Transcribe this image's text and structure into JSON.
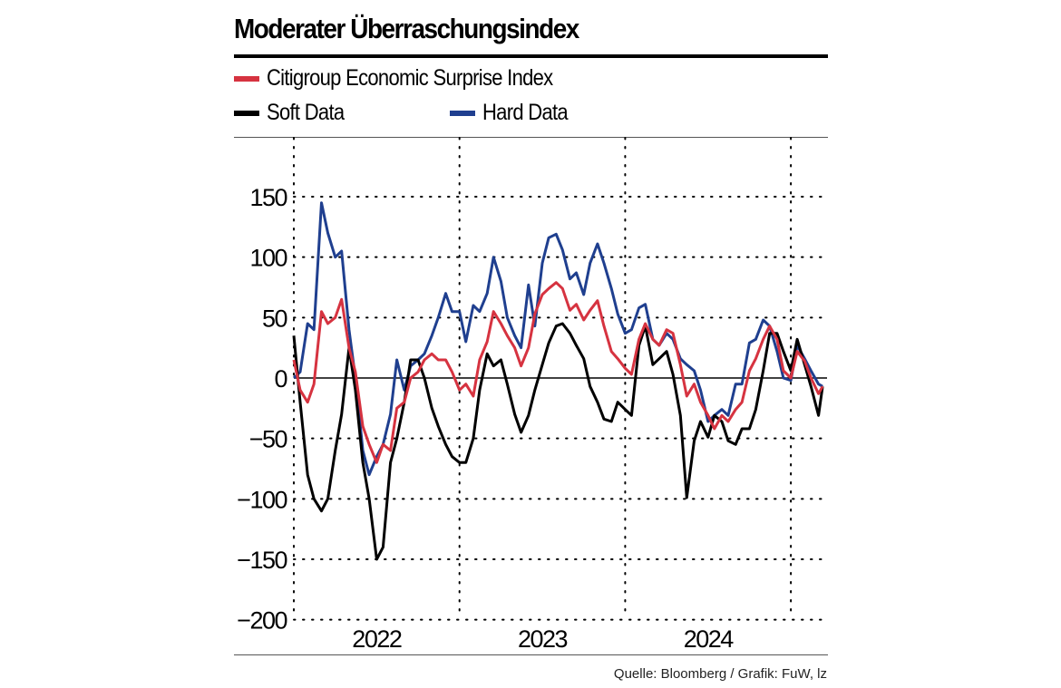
{
  "title": "Moderater Überraschungsindex",
  "source": "Quelle: Bloomberg / Grafik: FuW, lz",
  "chart_data": {
    "type": "line",
    "title": "Moderater Überraschungsindex",
    "xlabel": "",
    "ylabel": "",
    "ylim": [
      -200,
      200
    ],
    "yticks": [
      150,
      100,
      50,
      0,
      -50,
      -100,
      -150,
      -200
    ],
    "ytick_labels": [
      "150",
      "100",
      "50",
      "0",
      "−50",
      "−100",
      "−150",
      "−200"
    ],
    "xlim": [
      "2022-01-01",
      "2025-03-15"
    ],
    "xtick_labels": [
      "2022",
      "2023",
      "2024"
    ],
    "grid": "dotted",
    "legend": "top",
    "x": [
      "2022-01-01",
      "2022-01-15",
      "2022-02-01",
      "2022-02-15",
      "2022-03-01",
      "2022-03-15",
      "2022-04-01",
      "2022-04-15",
      "2022-05-01",
      "2022-05-15",
      "2022-06-01",
      "2022-06-15",
      "2022-07-01",
      "2022-07-15",
      "2022-08-01",
      "2022-08-15",
      "2022-09-01",
      "2022-09-15",
      "2022-10-01",
      "2022-10-15",
      "2022-11-01",
      "2022-11-15",
      "2022-12-01",
      "2022-12-15",
      "2023-01-01",
      "2023-01-15",
      "2023-02-01",
      "2023-02-15",
      "2023-03-01",
      "2023-03-15",
      "2023-04-01",
      "2023-04-15",
      "2023-05-01",
      "2023-05-15",
      "2023-06-01",
      "2023-06-15",
      "2023-07-01",
      "2023-07-15",
      "2023-08-01",
      "2023-08-15",
      "2023-09-01",
      "2023-09-15",
      "2023-10-01",
      "2023-10-15",
      "2023-11-01",
      "2023-11-15",
      "2023-12-01",
      "2023-12-15",
      "2024-01-01",
      "2024-01-15",
      "2024-02-01",
      "2024-02-15",
      "2024-03-01",
      "2024-03-15",
      "2024-04-01",
      "2024-04-15",
      "2024-05-01",
      "2024-05-15",
      "2024-06-01",
      "2024-06-15",
      "2024-07-01",
      "2024-07-15",
      "2024-08-01",
      "2024-08-15",
      "2024-09-01",
      "2024-09-15",
      "2024-10-01",
      "2024-10-15",
      "2024-11-01",
      "2024-11-15",
      "2024-12-01",
      "2024-12-15",
      "2025-01-01",
      "2025-01-15",
      "2025-02-01",
      "2025-02-15",
      "2025-03-01",
      "2025-03-10"
    ],
    "series": [
      {
        "name": "Hard Data",
        "color": "#1f3f8f",
        "values": [
          0,
          5,
          45,
          40,
          145,
          120,
          100,
          105,
          40,
          0,
          -60,
          -80,
          -65,
          -55,
          -30,
          15,
          -10,
          10,
          15,
          20,
          35,
          50,
          70,
          55,
          55,
          30,
          60,
          55,
          70,
          100,
          80,
          50,
          35,
          25,
          77,
          43,
          95,
          116,
          119,
          106,
          82,
          87,
          69,
          95,
          111,
          95,
          74,
          53,
          37,
          40,
          58,
          61,
          32,
          27,
          37,
          32,
          16,
          11,
          6,
          -10,
          -36,
          -31,
          -26,
          -31,
          -5,
          -5,
          29,
          32,
          48,
          43,
          22,
          0,
          -2,
          27,
          16,
          6,
          -5,
          -7
        ]
      },
      {
        "name": "Soft Data",
        "color": "#000000",
        "values": [
          35,
          -20,
          -80,
          -100,
          -110,
          -100,
          -60,
          -30,
          25,
          -10,
          -70,
          -100,
          -150,
          -140,
          -70,
          -50,
          -20,
          15,
          15,
          0,
          -25,
          -40,
          -55,
          -65,
          -70,
          -70,
          -50,
          -10,
          20,
          10,
          15,
          -5,
          -30,
          -45,
          -31,
          -10,
          11,
          29,
          43,
          45,
          37,
          27,
          16,
          -7,
          -20,
          -34,
          -36,
          -20,
          -26,
          -31,
          27,
          43,
          11,
          16,
          22,
          3,
          -31,
          -99,
          -52,
          -36,
          -49,
          -31,
          -36,
          -52,
          -55,
          -42,
          -42,
          -26,
          6,
          37,
          37,
          22,
          6,
          32,
          11,
          -7,
          -31,
          -7
        ]
      },
      {
        "name": "Citigroup Economic Surprise Index",
        "color": "#d63340",
        "values": [
          15,
          -10,
          -20,
          -5,
          55,
          45,
          50,
          65,
          25,
          5,
          -40,
          -55,
          -70,
          -55,
          -60,
          -25,
          -20,
          0,
          5,
          15,
          20,
          15,
          15,
          5,
          -10,
          -5,
          -15,
          15,
          30,
          55,
          45,
          35,
          25,
          10,
          25,
          53,
          69,
          74,
          79,
          74,
          56,
          61,
          48,
          56,
          64,
          43,
          22,
          16,
          8,
          3,
          32,
          45,
          32,
          27,
          40,
          37,
          11,
          -15,
          -5,
          -20,
          -31,
          -42,
          -31,
          -36,
          -26,
          -20,
          6,
          16,
          32,
          43,
          32,
          6,
          0,
          22,
          14,
          0,
          -13,
          -7
        ]
      }
    ]
  }
}
